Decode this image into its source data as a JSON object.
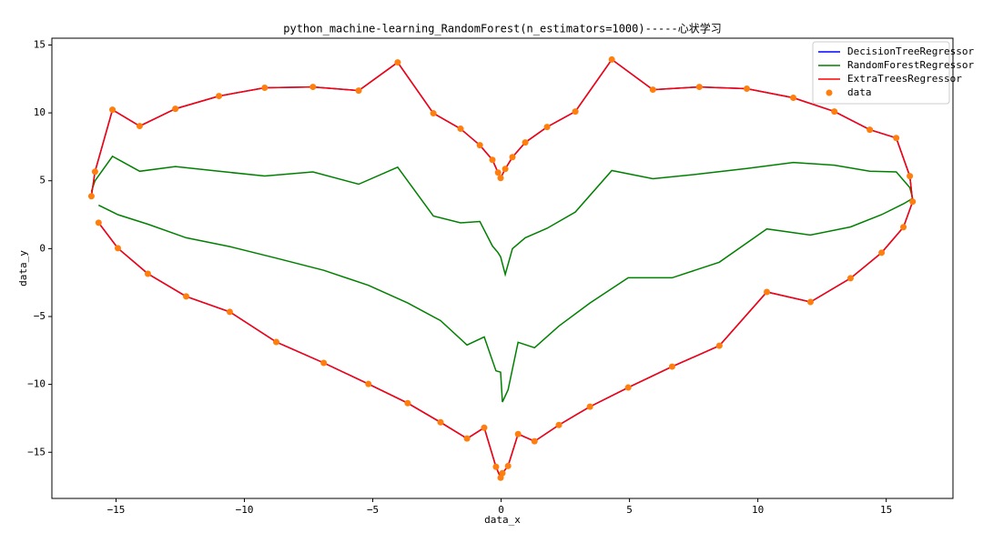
{
  "chart_data": {
    "type": "line",
    "title": "python_machine-learning_RandomForest(n_estimators=1000)-----心状学习",
    "x_label": "data_x",
    "y_label": "data_y",
    "xlim": [
      -17.5,
      17.6
    ],
    "ylim": [
      -18.4,
      15.5
    ],
    "xticks": [
      {
        "value": -15,
        "label": "−15"
      },
      {
        "value": -10,
        "label": "−10"
      },
      {
        "value": -5,
        "label": "−5"
      },
      0,
      5,
      10,
      15
    ],
    "yticks": [
      {
        "value": -15,
        "label": "−15"
      },
      {
        "value": -10,
        "label": "−10"
      },
      {
        "value": -5,
        "label": "−5"
      },
      0,
      5,
      10,
      15
    ],
    "legend": "upper right",
    "x": [
      -15.96,
      -15.82,
      -15.14,
      -14.08,
      -12.69,
      -10.99,
      -9.21,
      -7.33,
      -5.55,
      -4.03,
      -2.64,
      -1.58,
      -0.83,
      -0.34,
      -0.12,
      -0.02,
      0.16,
      0.44,
      0.94,
      1.79,
      2.89,
      4.31,
      5.91,
      7.72,
      9.57,
      11.38,
      12.98,
      14.36,
      15.39,
      15.92,
      16.03,
      15.67,
      14.82,
      13.61,
      12.05,
      10.35,
      8.5,
      6.66,
      4.95,
      3.46,
      2.25,
      1.3,
      0.66,
      0.27,
      0.05,
      -0.02,
      -0.2,
      -0.66,
      -1.33,
      -2.36,
      -3.64,
      -5.17,
      -6.91,
      -8.76,
      -10.57,
      -12.27,
      -13.76,
      -14.93,
      -15.68
    ],
    "series": [
      {
        "name": "DecisionTreeRegressor",
        "color": "#0000ff",
        "mode": "line",
        "values": [
          3.86,
          5.67,
          10.23,
          9.03,
          10.3,
          11.24,
          11.85,
          11.91,
          11.64,
          13.72,
          9.97,
          8.83,
          7.62,
          6.54,
          5.6,
          5.2,
          5.87,
          6.74,
          7.82,
          8.96,
          10.1,
          13.93,
          11.71,
          11.91,
          11.78,
          11.11,
          10.1,
          8.76,
          8.15,
          5.34,
          3.46,
          1.58,
          -0.3,
          -2.18,
          -3.93,
          -3.19,
          -7.15,
          -8.69,
          -10.23,
          -11.64,
          -12.99,
          -14.19,
          -13.66,
          -16.01,
          -16.54,
          -16.88,
          -16.07,
          -13.19,
          -13.99,
          -12.79,
          -11.38,
          -9.97,
          -8.42,
          -6.88,
          -4.66,
          -3.52,
          -1.85,
          0.03,
          1.91
        ]
      },
      {
        "name": "RandomForestRegressor",
        "color": "#008000",
        "mode": "line",
        "values": [
          4.2,
          5.0,
          6.8,
          5.7,
          6.05,
          5.7,
          5.35,
          5.65,
          4.75,
          6.0,
          2.4,
          1.9,
          2.0,
          0.2,
          -0.3,
          -0.6,
          -1.9,
          0.0,
          0.8,
          1.5,
          2.7,
          5.75,
          5.15,
          5.5,
          5.9,
          6.35,
          6.15,
          5.7,
          5.65,
          4.5,
          3.7,
          3.3,
          2.5,
          1.6,
          1.0,
          1.45,
          -1.0,
          -2.15,
          -2.15,
          -4.0,
          -5.7,
          -7.3,
          -6.9,
          -10.4,
          -11.3,
          -9.1,
          -9.0,
          -6.5,
          -7.1,
          -5.3,
          -4.0,
          -2.7,
          -1.6,
          -0.7,
          0.15,
          0.8,
          1.8,
          2.5,
          3.2
        ]
      },
      {
        "name": "ExtraTreesRegressor",
        "color": "#ff0000",
        "mode": "line",
        "values": [
          3.86,
          5.67,
          10.23,
          9.03,
          10.3,
          11.24,
          11.85,
          11.91,
          11.64,
          13.72,
          9.97,
          8.83,
          7.62,
          6.54,
          5.6,
          5.2,
          5.87,
          6.74,
          7.82,
          8.96,
          10.1,
          13.93,
          11.71,
          11.91,
          11.78,
          11.11,
          10.1,
          8.76,
          8.15,
          5.34,
          3.46,
          1.58,
          -0.3,
          -2.18,
          -3.93,
          -3.19,
          -7.15,
          -8.69,
          -10.23,
          -11.64,
          -12.99,
          -14.19,
          -13.66,
          -16.01,
          -16.54,
          -16.88,
          -16.07,
          -13.19,
          -13.99,
          -12.79,
          -11.38,
          -9.97,
          -8.42,
          -6.88,
          -4.66,
          -3.52,
          -1.85,
          0.03,
          1.91
        ]
      },
      {
        "name": "data",
        "color": "#ff7f0e",
        "mode": "markers",
        "values": [
          3.86,
          5.67,
          10.23,
          9.03,
          10.3,
          11.24,
          11.85,
          11.91,
          11.64,
          13.72,
          9.97,
          8.83,
          7.62,
          6.54,
          5.6,
          5.2,
          5.87,
          6.74,
          7.82,
          8.96,
          10.1,
          13.93,
          11.71,
          11.91,
          11.78,
          11.11,
          10.1,
          8.76,
          8.15,
          5.34,
          3.46,
          1.58,
          -0.3,
          -2.18,
          -3.93,
          -3.19,
          -7.15,
          -8.69,
          -10.23,
          -11.64,
          -12.99,
          -14.19,
          -13.66,
          -16.01,
          -16.54,
          -16.88,
          -16.07,
          -13.19,
          -13.99,
          -12.79,
          -11.38,
          -9.97,
          -8.42,
          -6.88,
          -4.66,
          -3.52,
          -1.85,
          0.03,
          1.91
        ]
      }
    ]
  }
}
